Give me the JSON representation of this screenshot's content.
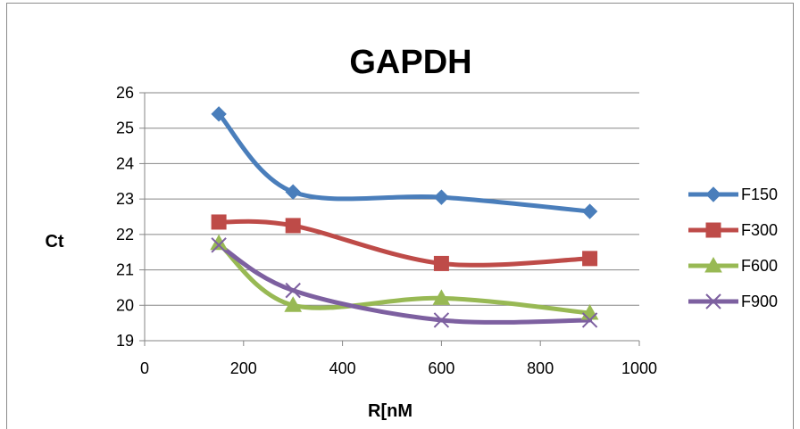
{
  "chart_data": {
    "type": "line",
    "title": "GAPDH",
    "xlabel": "R[nM",
    "ylabel": "Ct",
    "xlim": [
      0,
      1000
    ],
    "ylim": [
      19,
      26
    ],
    "x_ticks": [
      0,
      200,
      400,
      600,
      800,
      1000
    ],
    "y_ticks": [
      19,
      20,
      21,
      22,
      23,
      24,
      25,
      26
    ],
    "grid": "horizontal",
    "legend_position": "right",
    "smooth": true,
    "x": [
      150,
      300,
      600,
      900
    ],
    "series": [
      {
        "name": "F150",
        "values": [
          25.4,
          23.2,
          23.05,
          22.65
        ],
        "color": "#4a7ebb",
        "marker": "diamond"
      },
      {
        "name": "F300",
        "values": [
          22.35,
          22.25,
          21.18,
          21.32
        ],
        "color": "#be4b48",
        "marker": "square"
      },
      {
        "name": "F600",
        "values": [
          21.75,
          20.0,
          20.2,
          19.78
        ],
        "color": "#98b954",
        "marker": "triangle"
      },
      {
        "name": "F900",
        "values": [
          21.7,
          20.42,
          19.58,
          19.58
        ],
        "color": "#7d60a0",
        "marker": "x"
      }
    ]
  }
}
